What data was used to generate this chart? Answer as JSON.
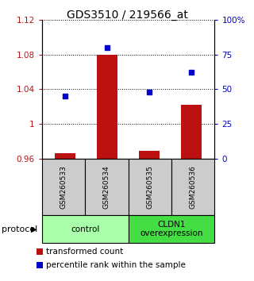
{
  "title": "GDS3510 / 219566_at",
  "samples": [
    "GSM260533",
    "GSM260534",
    "GSM260535",
    "GSM260536"
  ],
  "transformed_counts": [
    0.966,
    1.08,
    0.969,
    1.022
  ],
  "percentile_ranks": [
    45,
    80,
    48,
    62
  ],
  "bar_baseline": 0.96,
  "ylim_left": [
    0.96,
    1.12
  ],
  "ylim_right": [
    0,
    100
  ],
  "yticks_left": [
    0.96,
    1.0,
    1.04,
    1.08,
    1.12
  ],
  "ytick_labels_left": [
    "0.96",
    "1",
    "1.04",
    "1.08",
    "1.12"
  ],
  "yticks_right": [
    0,
    25,
    50,
    75,
    100
  ],
  "ytick_labels_right": [
    "0",
    "25",
    "50",
    "75",
    "100%"
  ],
  "bar_color": "#bb1111",
  "dot_color": "#0000cc",
  "bar_width": 0.5,
  "groups": [
    {
      "label": "control",
      "samples": [
        0,
        1
      ],
      "color": "#aaffaa"
    },
    {
      "label": "CLDN1\noverexpression",
      "samples": [
        2,
        3
      ],
      "color": "#44dd44"
    }
  ],
  "protocol_label": "protocol",
  "legend_items": [
    {
      "color": "#bb1111",
      "label": "transformed count"
    },
    {
      "color": "#0000cc",
      "label": "percentile rank within the sample"
    }
  ],
  "sample_box_color": "#cccccc",
  "title_fontsize": 10,
  "tick_fontsize": 7.5,
  "legend_fontsize": 7.5,
  "sample_fontsize": 6.5,
  "group_fontsize": 7.5,
  "protocol_fontsize": 8
}
